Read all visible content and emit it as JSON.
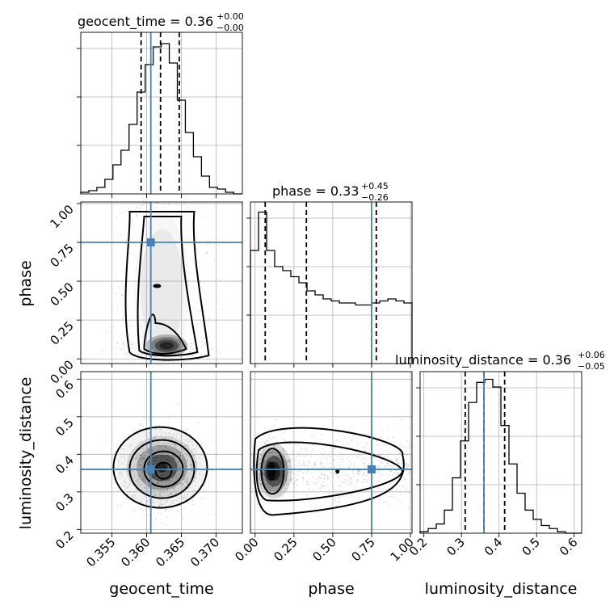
{
  "chart_data": {
    "type": "corner",
    "parameters": [
      {
        "key": "geocent_time",
        "label": "geocent_time",
        "range": [
          0.3505,
          0.3738
        ],
        "ticks": [
          0.355,
          0.36,
          0.365,
          0.37
        ],
        "tick_labels": [
          "0.355",
          "0.360",
          "0.365",
          "0.370"
        ]
      },
      {
        "key": "phase",
        "label": "phase",
        "range": [
          -0.03,
          1.01
        ],
        "ticks": [
          0.0,
          0.25,
          0.5,
          0.75,
          1.0
        ],
        "tick_labels": [
          "0.00",
          "0.25",
          "0.50",
          "0.75",
          "1.00"
        ]
      },
      {
        "key": "luminosity_distance",
        "label": "luminosity_distance",
        "range": [
          0.19,
          0.62
        ],
        "ticks": [
          0.2,
          0.3,
          0.4,
          0.5,
          0.6
        ],
        "tick_labels": [
          "0.2",
          "0.3",
          "0.4",
          "0.5",
          "0.6"
        ]
      }
    ],
    "titles": [
      {
        "text": "geocent_time = 0.36",
        "sup": "+0.00",
        "sub": "−0.00"
      },
      {
        "text": "phase = 0.33",
        "sup": "+0.45",
        "sub": "−0.26"
      },
      {
        "text": "luminosity_distance = 0.36",
        "sup": "+0.06",
        "sub": "−0.05"
      }
    ],
    "truths": [
      0.3606,
      0.75,
      0.36
    ],
    "quantiles": [
      [
        0.3592,
        0.362,
        0.3647
      ],
      [
        0.065,
        0.33,
        0.78
      ],
      [
        0.31,
        0.36,
        0.415
      ]
    ],
    "histograms": [
      {
        "edges_start": 0.3505,
        "bin_width": 0.00116,
        "counts": [
          1,
          2,
          4,
          9,
          18,
          27,
          43,
          63,
          80,
          91,
          93,
          81,
          58,
          38,
          23,
          11,
          4,
          3,
          1,
          0
        ]
      },
      {
        "edges_start": -0.03,
        "bin_width": 0.052,
        "counts": [
          112,
          150,
          112,
          96,
          92,
          86,
          80,
          72,
          68,
          64,
          62,
          60,
          60,
          58,
          58,
          60,
          62,
          64,
          62,
          60
        ]
      },
      {
        "edges_start": 0.19,
        "bin_width": 0.0215,
        "counts": [
          1,
          3,
          6,
          15,
          36,
          60,
          85,
          98,
          100,
          95,
          70,
          45,
          26,
          15,
          9,
          5,
          3,
          1,
          0,
          0
        ]
      }
    ],
    "hist_max": [
      100,
      160,
      105
    ],
    "contour_axes_note": "2D panels: phase vs geocent_time, luminosity_distance vs geocent_time, luminosity_distance vs phase",
    "grid": true
  }
}
